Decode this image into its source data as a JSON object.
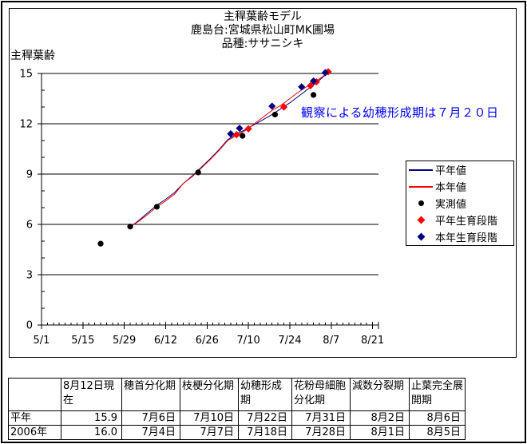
{
  "chart": {
    "title_lines": [
      "主稈葉齢モデル",
      "鹿島台:宮城県松山町MK圃場",
      "品種:ササニシキ"
    ],
    "y_axis_title": "主稈葉齢",
    "annotation": {
      "text": "観察による幼穂形成期は７月２０日",
      "color": "#0000ff"
    },
    "legend": [
      {
        "label": "平年値",
        "marker": "line",
        "color": "#000080"
      },
      {
        "label": "本年値",
        "marker": "line",
        "color": "#ff0000"
      },
      {
        "label": "実測値",
        "marker": "circle",
        "color": "#000000"
      },
      {
        "label": "平年生育段階",
        "marker": "diamond",
        "color": "#ff0000"
      },
      {
        "label": "本年生育段階",
        "marker": "diamond",
        "color": "#000080"
      }
    ]
  },
  "chart_data": {
    "type": "line",
    "x_axis": {
      "tick_labels": [
        "5/1",
        "5/15",
        "5/29",
        "6/12",
        "6/26",
        "7/10",
        "7/24",
        "8/7",
        "8/21"
      ],
      "range_days": [
        0,
        114
      ],
      "major_interval_days": 14,
      "minor_interval_days": 2
    },
    "y_axis": {
      "range": [
        0,
        15
      ],
      "major_interval": 3,
      "minor_interval": 1,
      "grid": true
    },
    "series": [
      {
        "name": "平年値",
        "type": "line",
        "color": "#000080",
        "points_day_value": [
          [
            30,
            5.85
          ],
          [
            33,
            6.25
          ],
          [
            36,
            6.7
          ],
          [
            39,
            7.15
          ],
          [
            42,
            7.5
          ],
          [
            45,
            7.9
          ],
          [
            48,
            8.45
          ],
          [
            51,
            8.9
          ],
          [
            54,
            9.4
          ],
          [
            57,
            9.9
          ],
          [
            60,
            10.45
          ],
          [
            63,
            11.05
          ],
          [
            66,
            11.4
          ],
          [
            69,
            11.65
          ],
          [
            72,
            11.95
          ],
          [
            75,
            12.25
          ],
          [
            78,
            12.55
          ],
          [
            81,
            12.9
          ],
          [
            84,
            13.25
          ],
          [
            87,
            13.65
          ],
          [
            90,
            14.05
          ],
          [
            93,
            14.45
          ],
          [
            95,
            14.75
          ],
          [
            97,
            15.05
          ]
        ]
      },
      {
        "name": "本年値",
        "type": "line",
        "color": "#ff0000",
        "points_day_value": [
          [
            30,
            5.85
          ],
          [
            33,
            6.2
          ],
          [
            36,
            6.6
          ],
          [
            39,
            7.05
          ],
          [
            42,
            7.4
          ],
          [
            45,
            7.8
          ],
          [
            48,
            8.45
          ],
          [
            51,
            8.85
          ],
          [
            54,
            9.35
          ],
          [
            57,
            9.85
          ],
          [
            60,
            10.4
          ],
          [
            63,
            11.0
          ],
          [
            66,
            11.3
          ],
          [
            69,
            11.6
          ],
          [
            72,
            12.0
          ],
          [
            75,
            12.4
          ],
          [
            78,
            12.8
          ],
          [
            81,
            13.1
          ],
          [
            84,
            13.5
          ],
          [
            87,
            13.9
          ],
          [
            90,
            14.25
          ],
          [
            93,
            14.55
          ],
          [
            95,
            14.8
          ],
          [
            97,
            15.1
          ]
        ]
      },
      {
        "name": "実測値",
        "type": "scatter",
        "marker": "circle",
        "color": "#000000",
        "points_date_value": [
          [
            "5/21",
            4.85
          ],
          [
            "5/31",
            5.87
          ],
          [
            "6/9",
            7.05
          ],
          [
            "6/23",
            9.1
          ],
          [
            "7/8",
            11.28
          ],
          [
            "7/19",
            12.55
          ],
          [
            "8/1",
            13.72
          ]
        ]
      },
      {
        "name": "平年生育段階",
        "type": "scatter",
        "marker": "diamond",
        "color": "#ff0000",
        "points_date_value": [
          [
            "7/6",
            11.35
          ],
          [
            "7/10",
            11.7
          ],
          [
            "7/22",
            13.0
          ],
          [
            "7/31",
            14.27
          ],
          [
            "8/2",
            14.5
          ],
          [
            "8/6",
            15.1
          ]
        ]
      },
      {
        "name": "本年生育段階",
        "type": "scatter",
        "marker": "diamond",
        "color": "#000080",
        "points_date_value": [
          [
            "7/4",
            11.4
          ],
          [
            "7/7",
            11.73
          ],
          [
            "7/18",
            13.05
          ],
          [
            "7/28",
            14.2
          ],
          [
            "8/1",
            14.55
          ],
          [
            "8/5",
            15.05
          ]
        ]
      }
    ]
  },
  "table": {
    "columns": [
      "",
      "8月12日現在",
      "穂首分化期",
      "枝梗分化期",
      "幼穂形成期",
      "花粉母細胞分化期",
      "減数分裂期",
      "止葉完全展開期"
    ],
    "rows": [
      {
        "label": "平年",
        "values": [
          "15.9",
          "7月6日",
          "7月10日",
          "7月22日",
          "7月31日",
          "8月2日",
          "8月6日"
        ]
      },
      {
        "label": "2006年",
        "values": [
          "16.0",
          "7月4日",
          "7月7日",
          "7月18日",
          "7月28日",
          "8月1日",
          "8月5日"
        ]
      }
    ]
  }
}
